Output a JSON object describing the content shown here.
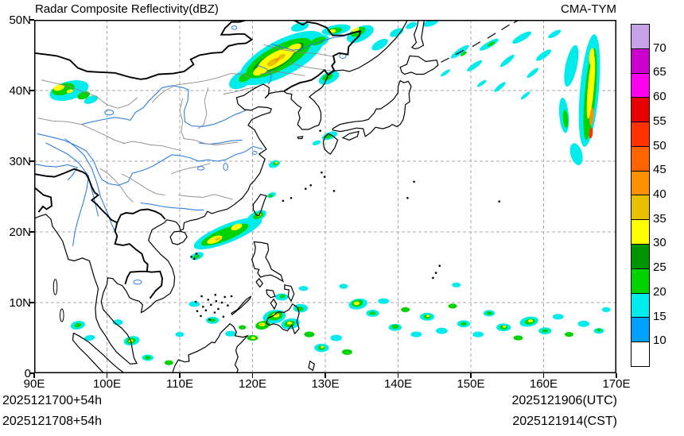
{
  "header": {
    "title": "Radar Composite Reflectivity(dBZ)",
    "model": "CMA-TYM"
  },
  "axes": {
    "x_ticks": [
      "90E",
      "100E",
      "110E",
      "120E",
      "130E",
      "140E",
      "150E",
      "160E",
      "170E"
    ],
    "y_ticks": [
      "50N",
      "40N",
      "30N",
      "20N",
      "10N",
      "0"
    ]
  },
  "colorbar": {
    "labels": [
      "70",
      "65",
      "60",
      "55",
      "50",
      "45",
      "40",
      "35",
      "30",
      "25",
      "20",
      "15",
      "10"
    ],
    "colors_bottom_to_top": [
      "#ffffff",
      "#00a0fe",
      "#00ecec",
      "#00d300",
      "#009400",
      "#ffff00",
      "#e7c000",
      "#ff9000",
      "#ff6400",
      "#ff3200",
      "#e60000",
      "#ff00f0",
      "#cc00cc",
      "#c8a2e8"
    ]
  },
  "footer": {
    "left": [
      "2025121700+54h",
      "2025121708+54h"
    ],
    "right": [
      "2025121906(UTC)",
      "2025121914(CST)"
    ]
  },
  "map": {
    "colors": {
      "grid": "#aaaaaa",
      "river": "#2f80e0",
      "province": "#8a8a8a",
      "coast": "#000000"
    },
    "echo_levels": {
      "bl": "#00a0fe",
      "cy": "#00ecec",
      "gr": "#00d300",
      "dg": "#009400",
      "ye": "#ffff00",
      "go": "#e7c000",
      "or": "#ff9000",
      "rd": "#ff3200"
    },
    "echoes": [
      [
        94.8,
        40.0,
        5.5,
        2.6,
        -15,
        "cy"
      ],
      [
        97.8,
        38.7,
        2.0,
        1.0,
        -20,
        "cy"
      ],
      [
        94.0,
        40.2,
        3.2,
        1.6,
        -15,
        "gr"
      ],
      [
        96.8,
        39.3,
        1.8,
        1.0,
        -20,
        "gr"
      ],
      [
        93.4,
        40.4,
        1.5,
        0.8,
        -15,
        "ye"
      ],
      [
        94.9,
        39.9,
        0.9,
        0.5,
        -15,
        "ye"
      ],
      [
        124.0,
        44.6,
        13,
        5,
        -28,
        "cy"
      ],
      [
        118.6,
        41.6,
        4,
        2.2,
        -30,
        "cy"
      ],
      [
        128.6,
        46.8,
        4,
        1.8,
        -20,
        "cy"
      ],
      [
        131.5,
        48.6,
        4,
        1.4,
        -10,
        "cy"
      ],
      [
        126.5,
        49.0,
        2.5,
        1.2,
        -15,
        "cy"
      ],
      [
        130.5,
        41.8,
        3,
        1.6,
        -25,
        "cy"
      ],
      [
        134.8,
        48.0,
        4,
        2,
        -25,
        "cy"
      ],
      [
        137.5,
        46.5,
        2.5,
        1.2,
        -30,
        "cy"
      ],
      [
        139.8,
        48.2,
        2,
        1,
        -25,
        "cy"
      ],
      [
        141.8,
        49.2,
        1.6,
        0.8,
        -25,
        "cy"
      ],
      [
        144.5,
        49.6,
        2.2,
        0.9,
        -20,
        "cy"
      ],
      [
        123.6,
        44.6,
        10,
        3.4,
        -28,
        "gr"
      ],
      [
        119.0,
        41.9,
        2,
        1.1,
        -30,
        "gr"
      ],
      [
        129.0,
        47.0,
        2.2,
        1.0,
        -20,
        "gr"
      ],
      [
        131.3,
        48.5,
        2,
        0.8,
        -10,
        "gr"
      ],
      [
        130.3,
        41.9,
        1.5,
        0.8,
        -25,
        "gr"
      ],
      [
        134.5,
        48.3,
        2.2,
        1.1,
        -25,
        "gr"
      ],
      [
        123.0,
        44.2,
        6.5,
        2.2,
        -28,
        "dg"
      ],
      [
        125.8,
        45.9,
        2.8,
        1.3,
        -28,
        "dg"
      ],
      [
        123.2,
        44.4,
        5.5,
        2.0,
        -28,
        "ye"
      ],
      [
        121.2,
        42.9,
        2.5,
        1.2,
        -28,
        "ye"
      ],
      [
        125.6,
        45.9,
        2.4,
        1.1,
        -28,
        "ye"
      ],
      [
        131.0,
        48.4,
        0.9,
        0.5,
        -10,
        "ye"
      ],
      [
        134.2,
        48.6,
        1.0,
        0.5,
        -25,
        "ye"
      ],
      [
        122.8,
        44.0,
        1.8,
        0.8,
        -28,
        "go"
      ],
      [
        124.0,
        44.8,
        1.2,
        0.6,
        -28,
        "go"
      ],
      [
        123.4,
        44.4,
        0.7,
        0.4,
        -28,
        "or"
      ],
      [
        130.6,
        33.6,
        2.2,
        1.0,
        -20,
        "cy"
      ],
      [
        128.8,
        32.6,
        1.2,
        0.6,
        -20,
        "cy"
      ],
      [
        130.4,
        33.5,
        1.0,
        0.5,
        -20,
        "gr"
      ],
      [
        148.5,
        45.5,
        3,
        0.8,
        -35,
        "cy"
      ],
      [
        150.5,
        43.5,
        2.5,
        0.7,
        -35,
        "cy"
      ],
      [
        152.5,
        46.5,
        3,
        0.8,
        -30,
        "cy"
      ],
      [
        155.0,
        44.2,
        2.5,
        0.7,
        -40,
        "cy"
      ],
      [
        157.0,
        47.5,
        3,
        0.9,
        -30,
        "cy"
      ],
      [
        158.5,
        42.5,
        2,
        0.6,
        -40,
        "cy"
      ],
      [
        154.0,
        40.5,
        2,
        0.6,
        -40,
        "cy"
      ],
      [
        160.0,
        45.0,
        2.5,
        0.8,
        -35,
        "cy"
      ],
      [
        161.5,
        48.0,
        2,
        0.7,
        -30,
        "cy"
      ],
      [
        151.5,
        41.0,
        1.5,
        0.5,
        -35,
        "cy"
      ],
      [
        146.5,
        42.5,
        1.6,
        0.5,
        -35,
        "cy"
      ],
      [
        157.5,
        39.3,
        1.6,
        0.5,
        -40,
        "cy"
      ],
      [
        152.8,
        46.6,
        1.2,
        0.4,
        -30,
        "gr"
      ],
      [
        149.0,
        45.2,
        1.0,
        0.4,
        -35,
        "gr"
      ],
      [
        166.3,
        40.0,
        2.6,
        16,
        5,
        "cy"
      ],
      [
        163.8,
        43.5,
        1.6,
        6,
        12,
        "cy"
      ],
      [
        162.8,
        36.5,
        1.3,
        5,
        -5,
        "cy"
      ],
      [
        164.5,
        31.0,
        1.6,
        3.2,
        -15,
        "cy"
      ],
      [
        166.4,
        39.5,
        1.5,
        13,
        5,
        "gr"
      ],
      [
        163.0,
        36.0,
        0.7,
        2.6,
        -5,
        "gr"
      ],
      [
        166.5,
        40.5,
        0.85,
        9,
        5,
        "ye"
      ],
      [
        166.6,
        44.8,
        0.7,
        2.4,
        5,
        "ye"
      ],
      [
        166.6,
        36.3,
        0.55,
        2.6,
        5,
        "or"
      ],
      [
        166.5,
        34.0,
        0.5,
        1.6,
        5,
        "rd"
      ],
      [
        123.0,
        29.6,
        1.6,
        1.0,
        -20,
        "cy"
      ],
      [
        123.2,
        29.7,
        0.8,
        0.5,
        -20,
        "gr"
      ],
      [
        123.3,
        29.8,
        0.4,
        0.25,
        -20,
        "ye"
      ],
      [
        122.6,
        25.2,
        1.3,
        0.7,
        -20,
        "cy"
      ],
      [
        122.5,
        25.1,
        0.6,
        0.4,
        -20,
        "gr"
      ],
      [
        116.6,
        19.8,
        10,
        2.6,
        -22,
        "cy"
      ],
      [
        120.6,
        22.2,
        2.8,
        1.4,
        -25,
        "cy"
      ],
      [
        112.4,
        16.6,
        1.8,
        1.0,
        -20,
        "cy"
      ],
      [
        116.2,
        19.6,
        7,
        1.7,
        -22,
        "gr"
      ],
      [
        120.8,
        22.3,
        1.5,
        0.8,
        -25,
        "gr"
      ],
      [
        112.3,
        16.5,
        0.9,
        0.5,
        -20,
        "gr"
      ],
      [
        114.8,
        18.9,
        2.2,
        0.9,
        -22,
        "ye"
      ],
      [
        117.8,
        20.7,
        1.6,
        0.8,
        -22,
        "ye"
      ],
      [
        120.9,
        22.4,
        0.6,
        0.4,
        -25,
        "ye"
      ],
      [
        115.2,
        19.0,
        0.8,
        0.4,
        -22,
        "go"
      ],
      [
        96.0,
        6.8,
        2.0,
        1.2,
        -10,
        "cy"
      ],
      [
        97.6,
        5.0,
        1.5,
        0.8,
        -10,
        "cy"
      ],
      [
        101.5,
        7.2,
        1.4,
        0.8,
        0,
        "cy"
      ],
      [
        103.4,
        4.6,
        2.2,
        1.3,
        -10,
        "cy"
      ],
      [
        105.6,
        2.2,
        1.6,
        0.9,
        0,
        "cy"
      ],
      [
        112.0,
        9.8,
        1.5,
        0.8,
        0,
        "cy"
      ],
      [
        114.5,
        7.5,
        1.8,
        1.0,
        0,
        "cy"
      ],
      [
        117.0,
        5.6,
        1.5,
        0.8,
        0,
        "cy"
      ],
      [
        123.0,
        8.0,
        3.2,
        1.9,
        -10,
        "cy"
      ],
      [
        125.2,
        7.0,
        2.6,
        1.5,
        -10,
        "cy"
      ],
      [
        126.6,
        9.2,
        2.0,
        1.2,
        0,
        "cy"
      ],
      [
        124.0,
        10.8,
        1.8,
        1.0,
        0,
        "cy"
      ],
      [
        129.5,
        3.6,
        2.0,
        1.2,
        0,
        "cy"
      ],
      [
        131.5,
        5.0,
        1.6,
        0.9,
        0,
        "cy"
      ],
      [
        134.5,
        9.8,
        2.6,
        1.5,
        -10,
        "cy"
      ],
      [
        136.5,
        8.5,
        1.8,
        1.0,
        0,
        "cy"
      ],
      [
        138.0,
        10.2,
        1.5,
        0.8,
        0,
        "cy"
      ],
      [
        139.6,
        6.5,
        1.8,
        1.0,
        0,
        "cy"
      ],
      [
        142.5,
        5.5,
        1.5,
        0.8,
        0,
        "cy"
      ],
      [
        144.0,
        8.0,
        2.0,
        1.1,
        0,
        "cy"
      ],
      [
        146.0,
        6.0,
        1.6,
        0.9,
        0,
        "cy"
      ],
      [
        149.0,
        7.0,
        1.8,
        1.0,
        0,
        "cy"
      ],
      [
        151.0,
        5.5,
        1.5,
        0.8,
        0,
        "cy"
      ],
      [
        152.5,
        8.5,
        1.6,
        0.9,
        0,
        "cy"
      ],
      [
        154.5,
        6.5,
        2.0,
        1.1,
        0,
        "cy"
      ],
      [
        158.0,
        7.3,
        2.6,
        1.4,
        -10,
        "cy"
      ],
      [
        160.2,
        6.0,
        1.8,
        1.0,
        0,
        "cy"
      ],
      [
        162.0,
        8.0,
        1.5,
        0.8,
        0,
        "cy"
      ],
      [
        165.5,
        7.0,
        1.6,
        0.9,
        0,
        "cy"
      ],
      [
        167.6,
        6.0,
        1.4,
        0.8,
        0,
        "cy"
      ],
      [
        168.6,
        9.0,
        1.2,
        0.7,
        0,
        "cy"
      ],
      [
        132.5,
        12.3,
        1.2,
        0.7,
        0,
        "cy"
      ],
      [
        127.0,
        12.0,
        1.3,
        0.7,
        0,
        "cy"
      ],
      [
        148.0,
        12.5,
        1.2,
        0.7,
        0,
        "cy"
      ],
      [
        110.0,
        5.5,
        1.2,
        0.7,
        0,
        "cy"
      ],
      [
        96.0,
        6.8,
        1.0,
        0.6,
        -10,
        "gr"
      ],
      [
        103.3,
        4.6,
        1.3,
        0.8,
        -10,
        "gr"
      ],
      [
        105.6,
        2.2,
        0.8,
        0.5,
        0,
        "gr"
      ],
      [
        108.5,
        1.5,
        1.2,
        0.7,
        0,
        "gr"
      ],
      [
        114.5,
        7.5,
        0.9,
        0.5,
        0,
        "gr"
      ],
      [
        118.6,
        6.5,
        1.0,
        0.6,
        0,
        "gr"
      ],
      [
        120.0,
        5.0,
        1.5,
        0.8,
        0,
        "gr"
      ],
      [
        121.4,
        6.8,
        2.0,
        1.2,
        -10,
        "gr"
      ],
      [
        123.1,
        8.1,
        2.1,
        1.2,
        -10,
        "gr"
      ],
      [
        125.1,
        7.0,
        1.5,
        0.9,
        -10,
        "gr"
      ],
      [
        126.5,
        9.1,
        1.0,
        0.6,
        0,
        "gr"
      ],
      [
        124.1,
        10.9,
        0.8,
        0.5,
        0,
        "gr"
      ],
      [
        127.8,
        5.5,
        1.4,
        0.8,
        0,
        "gr"
      ],
      [
        129.5,
        3.6,
        1.0,
        0.6,
        0,
        "gr"
      ],
      [
        133.0,
        3.0,
        1.4,
        0.8,
        0,
        "gr"
      ],
      [
        134.4,
        9.9,
        1.6,
        1.0,
        -10,
        "gr"
      ],
      [
        136.5,
        8.5,
        0.9,
        0.5,
        0,
        "gr"
      ],
      [
        139.6,
        6.6,
        1.0,
        0.6,
        0,
        "gr"
      ],
      [
        141.0,
        9.0,
        1.2,
        0.7,
        0,
        "gr"
      ],
      [
        144.0,
        8.0,
        1.0,
        0.6,
        0,
        "gr"
      ],
      [
        147.5,
        9.5,
        1.2,
        0.7,
        0,
        "gr"
      ],
      [
        149.0,
        7.0,
        0.9,
        0.5,
        0,
        "gr"
      ],
      [
        152.5,
        8.5,
        0.8,
        0.5,
        0,
        "gr"
      ],
      [
        154.5,
        6.5,
        1.1,
        0.6,
        0,
        "gr"
      ],
      [
        156.5,
        5.0,
        1.3,
        0.7,
        0,
        "gr"
      ],
      [
        158.1,
        7.3,
        1.5,
        0.8,
        -10,
        "gr"
      ],
      [
        160.2,
        6.0,
        0.9,
        0.5,
        0,
        "gr"
      ],
      [
        163.5,
        5.5,
        1.2,
        0.7,
        0,
        "gr"
      ],
      [
        167.6,
        6.1,
        0.7,
        0.4,
        0,
        "gr"
      ],
      [
        103.3,
        4.6,
        0.6,
        0.4,
        0,
        "ye"
      ],
      [
        120.1,
        5.0,
        0.6,
        0.4,
        0,
        "ye"
      ],
      [
        121.3,
        6.9,
        0.9,
        0.5,
        0,
        "ye"
      ],
      [
        123.2,
        8.2,
        1.0,
        0.6,
        0,
        "ye"
      ],
      [
        125.1,
        7.1,
        0.7,
        0.4,
        0,
        "ye"
      ],
      [
        134.3,
        9.9,
        0.8,
        0.5,
        0,
        "ye"
      ],
      [
        144.1,
        8.1,
        0.5,
        0.3,
        0,
        "ye"
      ],
      [
        154.6,
        6.6,
        0.5,
        0.3,
        0,
        "ye"
      ],
      [
        158.2,
        7.4,
        0.7,
        0.4,
        0,
        "ye"
      ],
      [
        129.6,
        3.7,
        0.5,
        0.3,
        0,
        "ye"
      ],
      [
        121.2,
        6.9,
        0.4,
        0.25,
        0,
        "go"
      ],
      [
        123.3,
        8.3,
        0.45,
        0.3,
        0,
        "go"
      ]
    ],
    "specks": [
      [
        112.9,
        8.1
      ],
      [
        113.6,
        8.9
      ],
      [
        114.3,
        9.7
      ],
      [
        115.0,
        10.2
      ],
      [
        115.8,
        10.0
      ],
      [
        114.8,
        8.6
      ],
      [
        113.9,
        10.4
      ],
      [
        115.3,
        9.1
      ],
      [
        116.2,
        10.8
      ],
      [
        113.2,
        9.4
      ],
      [
        116.0,
        8.0
      ],
      [
        117.1,
        10.9
      ],
      [
        112.4,
        8.8
      ],
      [
        114.1,
        7.6
      ],
      [
        116.6,
        9.6
      ],
      [
        112.2,
        10.1
      ],
      [
        113.0,
        10.9
      ],
      [
        114.9,
        11.1
      ],
      [
        111.6,
        16.5
      ],
      [
        112.3,
        16.9
      ],
      [
        112.0,
        16.2
      ],
      [
        128.0,
        26.6
      ],
      [
        127.3,
        26.1
      ],
      [
        125.3,
        24.8
      ],
      [
        124.2,
        24.4
      ],
      [
        131.2,
        25.8
      ],
      [
        129.5,
        28.4
      ],
      [
        129.9,
        27.8
      ],
      [
        142.2,
        27.1
      ],
      [
        141.3,
        24.8
      ],
      [
        145.7,
        15.2
      ],
      [
        145.2,
        14.2
      ],
      [
        144.8,
        13.5
      ],
      [
        153.9,
        24.3
      ],
      [
        129.3,
        34.3
      ]
    ]
  }
}
